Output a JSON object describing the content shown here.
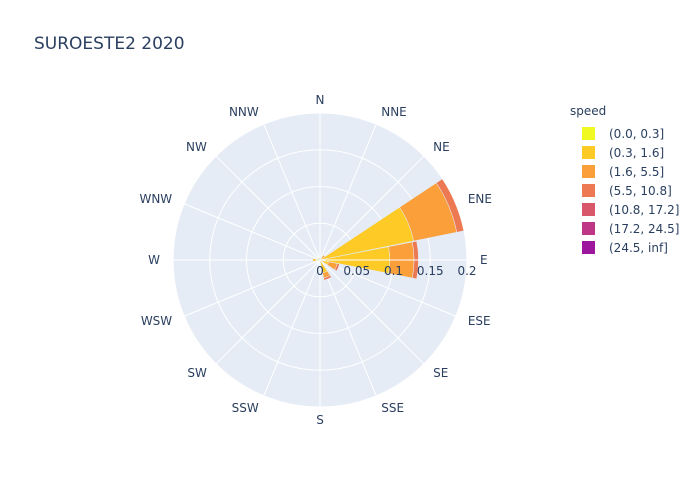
{
  "chart_data": {
    "type": "barpolar",
    "title": "SUROESTE2 2020",
    "directions": [
      "N",
      "NNE",
      "NE",
      "ENE",
      "E",
      "ESE",
      "SE",
      "SSE",
      "S",
      "SSW",
      "SW",
      "WSW",
      "W",
      "WNW",
      "NW",
      "NNW"
    ],
    "radial_ticks": [
      "0",
      "0.05",
      "0.1",
      "0.15",
      "0.2"
    ],
    "radial_range": [
      0,
      0.2
    ],
    "grid": true,
    "legend_title": "speed",
    "legend_position": "right",
    "series": [
      {
        "name": "(0.0, 0.3]",
        "color": "#f0f921",
        "values": [
          0,
          0,
          0,
          0,
          0,
          0,
          0,
          0,
          0,
          0,
          0,
          0,
          0.005,
          0,
          0,
          0
        ]
      },
      {
        "name": "(0.3, 1.6]",
        "color": "#fdca26",
        "values": [
          0.003,
          0,
          0.004,
          0.13,
          0.095,
          0.012,
          0,
          0.018,
          0,
          0,
          0,
          0,
          0.005,
          0,
          0.004,
          0
        ]
      },
      {
        "name": "(1.6, 5.5]",
        "color": "#fb9f3a",
        "values": [
          0,
          0,
          0.004,
          0.06,
          0.033,
          0.012,
          0,
          0.007,
          0,
          0,
          0,
          0,
          0,
          0,
          0,
          0
        ]
      },
      {
        "name": "(5.5, 10.8]",
        "color": "#ed7953",
        "values": [
          0,
          0,
          0,
          0.013,
          0.006,
          0.003,
          0,
          0.003,
          0,
          0,
          0,
          0,
          0,
          0,
          0,
          0
        ]
      },
      {
        "name": "(10.8, 17.2]",
        "color": "#d8576b",
        "values": [
          0,
          0,
          0,
          0,
          0,
          0,
          0,
          0,
          0,
          0,
          0,
          0,
          0,
          0,
          0,
          0
        ]
      },
      {
        "name": "(17.2, 24.5]",
        "color": "#bd3786",
        "values": [
          0,
          0,
          0,
          0,
          0,
          0,
          0,
          0,
          0,
          0,
          0,
          0,
          0,
          0,
          0,
          0
        ]
      },
      {
        "name": "(24.5, inf]",
        "color": "#9c179e",
        "values": [
          0,
          0,
          0,
          0,
          0,
          0,
          0,
          0,
          0,
          0,
          0,
          0,
          0,
          0,
          0,
          0
        ]
      }
    ]
  }
}
